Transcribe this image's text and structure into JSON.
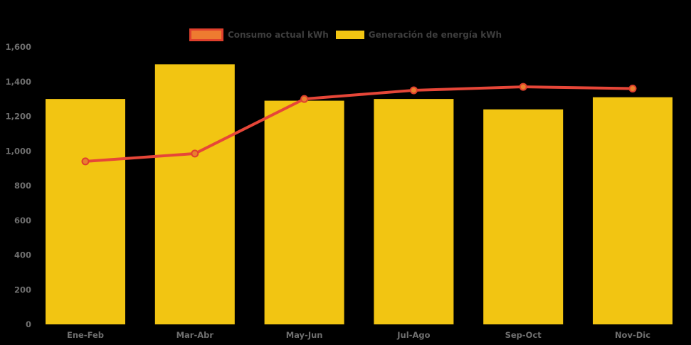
{
  "colors": {
    "background": "#000000",
    "bar_fill": "#F2C512",
    "line_stroke": "#E64638",
    "marker_fill": "#E8802E",
    "marker_stroke": "#E0402D",
    "legend_line_border": "#E0402D",
    "legend_line_fill": "#EE7B30",
    "axis_label": "#6F6F6F",
    "legend_label": "#3E3E3E"
  },
  "legend": {
    "items": [
      {
        "label": "Consumo actual kWh",
        "marker": "line-swatch"
      },
      {
        "label": "Generación de energía kWh",
        "marker": "bar-swatch"
      }
    ]
  },
  "chart_data": {
    "type": "bar",
    "subtype": "combo-bar-line",
    "title": "",
    "xlabel": "",
    "ylabel": "",
    "categories": [
      "Ene-Feb",
      "Mar-Abr",
      "May-Jun",
      "Jul-Ago",
      "Sep-Oct",
      "Nov-Dic"
    ],
    "series": [
      {
        "name": "Consumo actual kWh",
        "type": "line",
        "values": [
          940,
          985,
          1300,
          1350,
          1370,
          1360
        ]
      },
      {
        "name": "Generación de energía kWh",
        "type": "bar",
        "values": [
          1300,
          1500,
          1290,
          1300,
          1240,
          1310
        ]
      }
    ],
    "ylim": [
      0,
      1600
    ],
    "ytick_step": 200,
    "ytick_labels": [
      "0",
      "200",
      "400",
      "600",
      "800",
      "1,000",
      "1,200",
      "1,400",
      "1,600"
    ],
    "grid": false,
    "legend_position": "top"
  }
}
